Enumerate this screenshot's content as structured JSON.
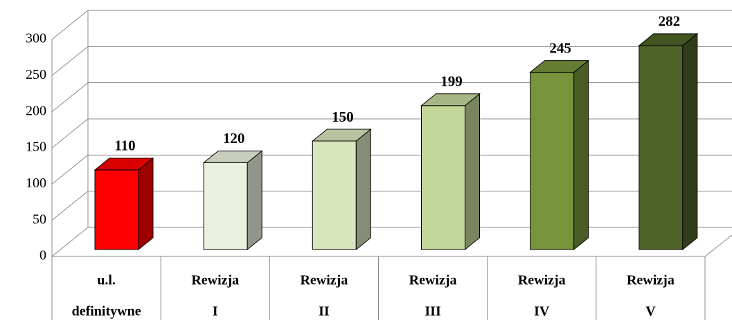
{
  "chart_data": {
    "type": "bar3d",
    "categories": [
      [
        "u.l.",
        "definitywne"
      ],
      [
        "Rewizja",
        "I"
      ],
      [
        "Rewizja",
        "II"
      ],
      [
        "Rewizja",
        "III"
      ],
      [
        "Rewizja",
        "IV"
      ],
      [
        "Rewizja",
        "V"
      ]
    ],
    "values": [
      110,
      120,
      150,
      199,
      245,
      282
    ],
    "colors": [
      "#ff0000",
      "#ebf1de",
      "#d7e4bc",
      "#c4d79b",
      "#77933c",
      "#4f6228"
    ],
    "ylim": [
      0,
      300
    ],
    "yticks": [
      0,
      50,
      100,
      150,
      200,
      250,
      300
    ],
    "grid": true
  }
}
